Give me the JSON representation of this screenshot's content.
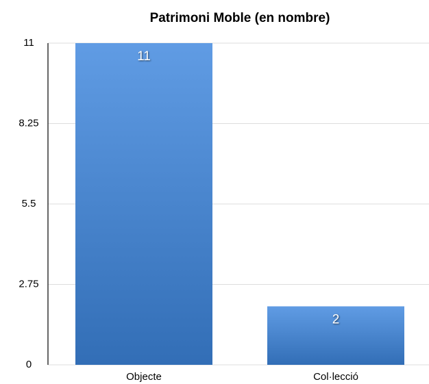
{
  "chart_data": {
    "type": "bar",
    "title": "Patrimoni Moble (en nombre)",
    "categories": [
      "Objecte",
      "Col·lecció"
    ],
    "values": [
      11,
      2
    ],
    "color": "#3d86de",
    "ylim": [
      0,
      11
    ],
    "yticks": [
      0,
      2.75,
      5.5,
      8.25,
      11
    ],
    "grid": true
  }
}
